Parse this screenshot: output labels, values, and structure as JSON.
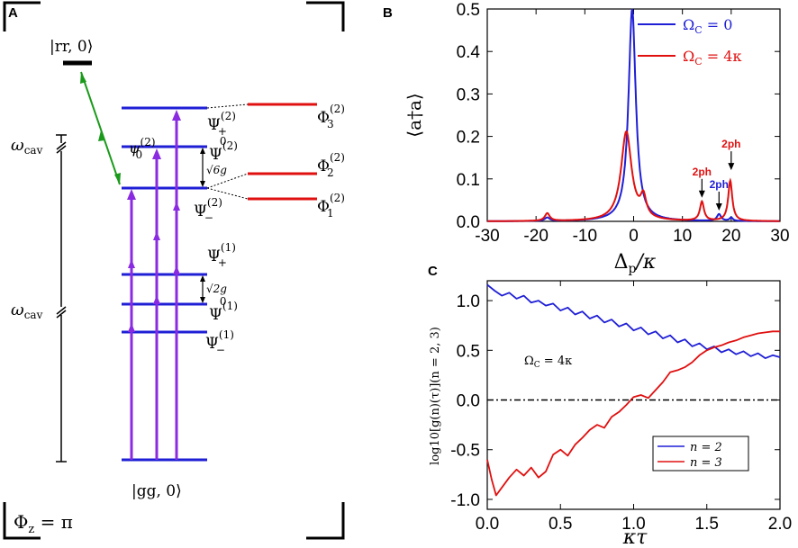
{
  "panel_a": {
    "panel_label": "A",
    "level_rr": "|rr, 0⟩",
    "level_gg": "|gg, 0⟩",
    "omega_cav_upper": "ω",
    "omega_cav_lower": "ω",
    "omega_sub": "cav",
    "psi2_plus": "Ψ",
    "psi2_plus_sup": "(2)",
    "psi2_plus_sub": "+",
    "psi2_zero": "Ψ",
    "psi2_zero_sup": "(2)",
    "psi2_zero_sub": "0",
    "psi2_zero_lower": "ψ",
    "psi2_zero_lower_sup": "(2)",
    "psi2_zero_lower_sub": "0",
    "psi2_minus": "Ψ",
    "psi2_minus_sup": "(2)",
    "psi2_minus_sub": "−",
    "phi3": "Φ",
    "phi3_sup": "(2)",
    "phi3_sub": "3",
    "phi2": "Φ",
    "phi2_sup": "(2)",
    "phi2_sub": "2",
    "phi1": "Φ",
    "phi1_sup": "(2)",
    "phi1_sub": "1",
    "sqrt6g": "√6g",
    "psi1_plus": "Ψ",
    "psi1_plus_sup": "(1)",
    "psi1_plus_sub": "+",
    "psi1_zero": "Ψ",
    "psi1_zero_sup": "(1)",
    "psi1_zero_sub": "0",
    "psi1_minus": "Ψ",
    "psi1_minus_sup": "(1)",
    "psi1_minus_sub": "−",
    "sqrt2g": "√2g",
    "phi_z": "Φ",
    "phi_z_sub": "z",
    "phi_z_eq": " = π"
  },
  "colors": {
    "blue": "#1f1fd6",
    "red": "#e01010",
    "purple": "#8a2be2",
    "green": "#1a9a1a",
    "black": "#000000"
  },
  "chart_data": [
    {
      "panel_label": "B",
      "type": "line",
      "ylabel": "⟨a†a⟩",
      "xlabel": "Δp/κ",
      "xlabel_main": "Δ",
      "xlabel_sub": "p",
      "xlabel_tail": "/κ",
      "xlim": [
        -30,
        30
      ],
      "ylim": [
        0,
        0.5
      ],
      "xticks": [
        -30,
        -20,
        -10,
        0,
        10,
        20,
        30
      ],
      "xtick_labels": [
        "-30",
        "-20",
        "-10",
        "0",
        "10",
        "20",
        "30"
      ],
      "yticks": [
        0,
        0.1,
        0.2,
        0.3,
        0.4,
        0.5
      ],
      "ytick_labels": [
        "0.0",
        "0.1",
        "0.2",
        "0.3",
        "0.4",
        "0.5"
      ],
      "legend": [
        {
          "label": "ΩC = 0",
          "main": "Ω",
          "sub": "C",
          "tail": " = 0",
          "color": "#1f1fd6"
        },
        {
          "label": "ΩC = 4κ",
          "main": "Ω",
          "sub": "C",
          "tail": " = 4κ",
          "color": "#e01010"
        }
      ],
      "annotations": [
        {
          "text": "2ph",
          "color": "#e01010",
          "x": 14,
          "y": 0.1
        },
        {
          "text": "2ph",
          "color": "#1f1fd6",
          "x": 17.5,
          "y": 0.07
        },
        {
          "text": "2ph",
          "color": "#e01010",
          "x": 20,
          "y": 0.165
        }
      ],
      "series": [
        {
          "name": "ΩC = 0",
          "color": "#1f1fd6",
          "peaks": [
            [
              -17.7,
              0.008,
              0.6
            ],
            [
              -0.3,
              0.5,
              0.9
            ],
            [
              17.5,
              0.016,
              0.5
            ],
            [
              20,
              0.008,
              0.4
            ]
          ]
        },
        {
          "name": "ΩC = 4κ",
          "color": "#e01010",
          "peaks": [
            [
              -17.7,
              0.018,
              0.6
            ],
            [
              -1.5,
              0.21,
              1.3
            ],
            [
              2,
              0.047,
              0.7
            ],
            [
              14,
              0.045,
              0.5
            ],
            [
              19.8,
              0.095,
              0.5
            ]
          ]
        }
      ]
    },
    {
      "panel_label": "C",
      "type": "line",
      "ylabel": "log10[g(n)(τ)](n = 2, 3)",
      "xlabel": "κτ",
      "xlim": [
        0,
        2.0
      ],
      "ylim": [
        -1.1,
        1.2
      ],
      "xticks": [
        0,
        0.5,
        1.0,
        1.5,
        2.0
      ],
      "xtick_labels": [
        "0.0",
        "0.5",
        "1.0",
        "1.5",
        "2.0"
      ],
      "yticks": [
        -1.0,
        -0.5,
        0.0,
        0.5,
        1.0
      ],
      "ytick_labels": [
        "-1.0",
        "-0.5",
        "0.0",
        "0.5",
        "1.0"
      ],
      "annotation": "ΩC = 4κ",
      "annotation_main": "Ω",
      "annotation_sub": "C",
      "annotation_tail": " = 4κ",
      "legend": [
        {
          "label": "n = 2",
          "color": "#1f1fd6"
        },
        {
          "label": "n = 3",
          "color": "#e01010"
        }
      ],
      "series": [
        {
          "name": "n = 2",
          "color": "#1f1fd6",
          "x": [
            0,
            0.05,
            0.1,
            0.15,
            0.2,
            0.25,
            0.3,
            0.35,
            0.4,
            0.45,
            0.5,
            0.55,
            0.6,
            0.65,
            0.7,
            0.75,
            0.8,
            0.85,
            0.9,
            0.95,
            1.0,
            1.05,
            1.1,
            1.15,
            1.2,
            1.25,
            1.3,
            1.35,
            1.4,
            1.45,
            1.5,
            1.55,
            1.6,
            1.65,
            1.7,
            1.75,
            1.8,
            1.85,
            1.9,
            1.95,
            2.0
          ],
          "y": [
            1.16,
            1.1,
            1.05,
            1.08,
            1.02,
            1.05,
            0.98,
            1.0,
            0.95,
            0.97,
            0.9,
            0.93,
            0.86,
            0.89,
            0.82,
            0.85,
            0.78,
            0.81,
            0.74,
            0.77,
            0.7,
            0.73,
            0.66,
            0.69,
            0.62,
            0.65,
            0.58,
            0.61,
            0.54,
            0.57,
            0.51,
            0.54,
            0.48,
            0.51,
            0.46,
            0.49,
            0.44,
            0.47,
            0.42,
            0.45,
            0.43
          ]
        },
        {
          "name": "n = 3",
          "color": "#e01010",
          "x": [
            0,
            0.03,
            0.06,
            0.1,
            0.15,
            0.2,
            0.25,
            0.3,
            0.35,
            0.4,
            0.45,
            0.5,
            0.55,
            0.6,
            0.65,
            0.7,
            0.75,
            0.8,
            0.85,
            0.9,
            0.95,
            1.0,
            1.05,
            1.1,
            1.15,
            1.2,
            1.25,
            1.3,
            1.35,
            1.4,
            1.45,
            1.5,
            1.55,
            1.6,
            1.65,
            1.7,
            1.75,
            1.8,
            1.85,
            1.9,
            1.95,
            2.0
          ],
          "y": [
            -0.6,
            -0.8,
            -0.96,
            -0.88,
            -0.78,
            -0.7,
            -0.76,
            -0.68,
            -0.78,
            -0.72,
            -0.55,
            -0.5,
            -0.56,
            -0.45,
            -0.38,
            -0.3,
            -0.25,
            -0.28,
            -0.17,
            -0.12,
            -0.05,
            0.03,
            0.05,
            0.02,
            0.1,
            0.18,
            0.28,
            0.3,
            0.33,
            0.38,
            0.45,
            0.5,
            0.53,
            0.55,
            0.58,
            0.6,
            0.63,
            0.65,
            0.67,
            0.68,
            0.69,
            0.69
          ]
        },
        {
          "name": "zero-line",
          "color": "#000000",
          "x": [
            0,
            2.0
          ],
          "y": [
            0,
            0
          ]
        }
      ]
    }
  ]
}
